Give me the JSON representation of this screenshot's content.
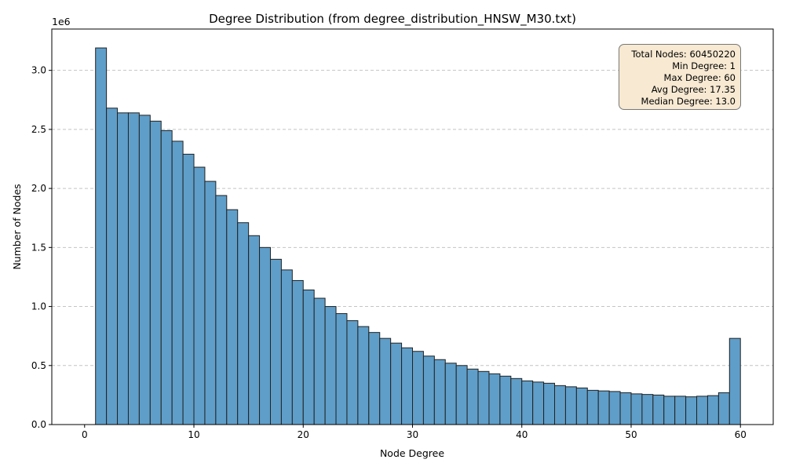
{
  "chart_data": {
    "type": "bar",
    "title": "Degree Distribution (from degree_distribution_HNSW_M30.txt)",
    "xlabel": "Node Degree",
    "ylabel": "Number of Nodes",
    "y_offset_label": "1e6",
    "xlim": [
      -3,
      63
    ],
    "ylim": [
      0,
      3350000
    ],
    "grid": "y dashed",
    "bar_color": "#5f9ec9",
    "edge_color": "#222222",
    "bin_edges_start": 1,
    "bin_width": 1,
    "values": [
      3190000,
      2680000,
      2640000,
      2640000,
      2620000,
      2570000,
      2490000,
      2400000,
      2290000,
      2180000,
      2060000,
      1940000,
      1820000,
      1710000,
      1600000,
      1500000,
      1400000,
      1310000,
      1220000,
      1140000,
      1070000,
      1000000,
      940000,
      880000,
      830000,
      780000,
      730000,
      690000,
      650000,
      620000,
      580000,
      550000,
      520000,
      500000,
      470000,
      450000,
      430000,
      410000,
      390000,
      370000,
      360000,
      350000,
      330000,
      320000,
      310000,
      290000,
      285000,
      280000,
      270000,
      260000,
      255000,
      250000,
      240000,
      240000,
      235000,
      240000,
      245000,
      270000,
      730000
    ],
    "xticks": [
      0,
      10,
      20,
      30,
      40,
      50,
      60
    ],
    "xtick_labels": [
      "0",
      "10",
      "20",
      "30",
      "40",
      "50",
      "60"
    ],
    "yticks": [
      0,
      500000,
      1000000,
      1500000,
      2000000,
      2500000,
      3000000
    ],
    "ytick_labels": [
      "0.0",
      "0.5",
      "1.0",
      "1.5",
      "2.0",
      "2.5",
      "3.0"
    ],
    "annotation": {
      "position": "top-right",
      "lines": [
        "Total Nodes: 60450220",
        "Min Degree: 1",
        "Max Degree: 60",
        "Avg Degree: 17.35",
        "Median Degree: 13.0"
      ]
    }
  }
}
